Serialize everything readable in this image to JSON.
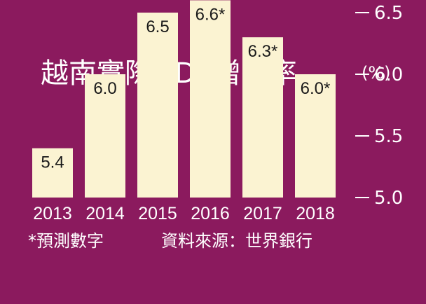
{
  "chart_data": {
    "type": "bar",
    "title": "越南實際GDP增長率",
    "unit": "(%)",
    "categories": [
      "2013",
      "2014",
      "2015",
      "2016",
      "2017",
      "2018"
    ],
    "values": [
      5.4,
      6.0,
      6.5,
      6.6,
      6.3,
      6.0
    ],
    "data_labels": [
      "5.4",
      "6.0",
      "6.5",
      "6.6*",
      "6.3*",
      "6.0*"
    ],
    "ylim": [
      5.0,
      6.6
    ],
    "yticks": [
      {
        "value": 6.5,
        "label": "6.5"
      },
      {
        "value": 6.0,
        "label": "6.0"
      },
      {
        "value": 5.5,
        "label": "5.5"
      },
      {
        "value": 5.0,
        "label": "5.0"
      }
    ],
    "grid": false,
    "y_axis_position": "right",
    "footnote": "*預測數字",
    "source": "資料來源：世界銀行",
    "colors": {
      "background": "#8B1A5E",
      "bar": "#FBF3D2",
      "text": "#FFFFFF",
      "data_label_text": "#1A1A1A"
    }
  }
}
